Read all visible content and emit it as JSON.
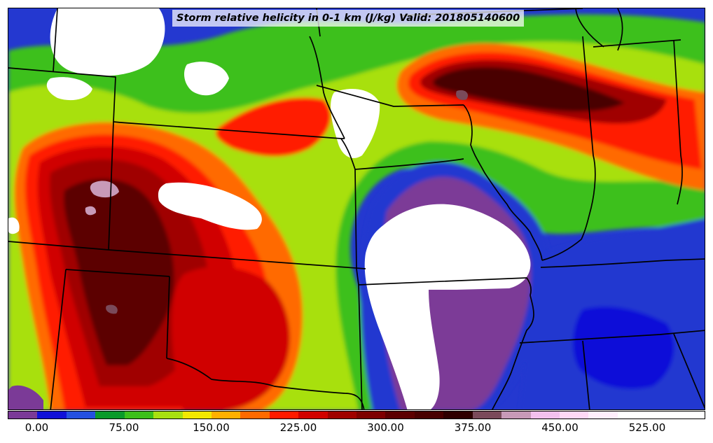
{
  "title": "Storm relative helicity in 0-1 km (J/kg) Valid: 201805140600",
  "colorbar": {
    "min": -25,
    "max": 575,
    "step": 25,
    "colors": [
      "#7b3a97",
      "#1010d8",
      "#2450e0",
      "#0a9a2a",
      "#3cc01a",
      "#a8e010",
      "#f2e800",
      "#ffb000",
      "#ff6a00",
      "#ff1a00",
      "#d00000",
      "#a00000",
      "#7e0000",
      "#5c0000",
      "#480000",
      "#2e0000",
      "#7a4a5a",
      "#c89ab8",
      "#f3c0ee",
      "#ffd8f6",
      "#ffeefc",
      "#ffffff",
      "#ffffff",
      "#ffffff"
    ],
    "tick_values": [
      0,
      75,
      150,
      225,
      300,
      375,
      450,
      525
    ],
    "tick_labels": [
      "0.00",
      "75.00",
      "150.00",
      "225.00",
      "300.00",
      "375.00",
      "450.00",
      "525.00"
    ]
  }
}
